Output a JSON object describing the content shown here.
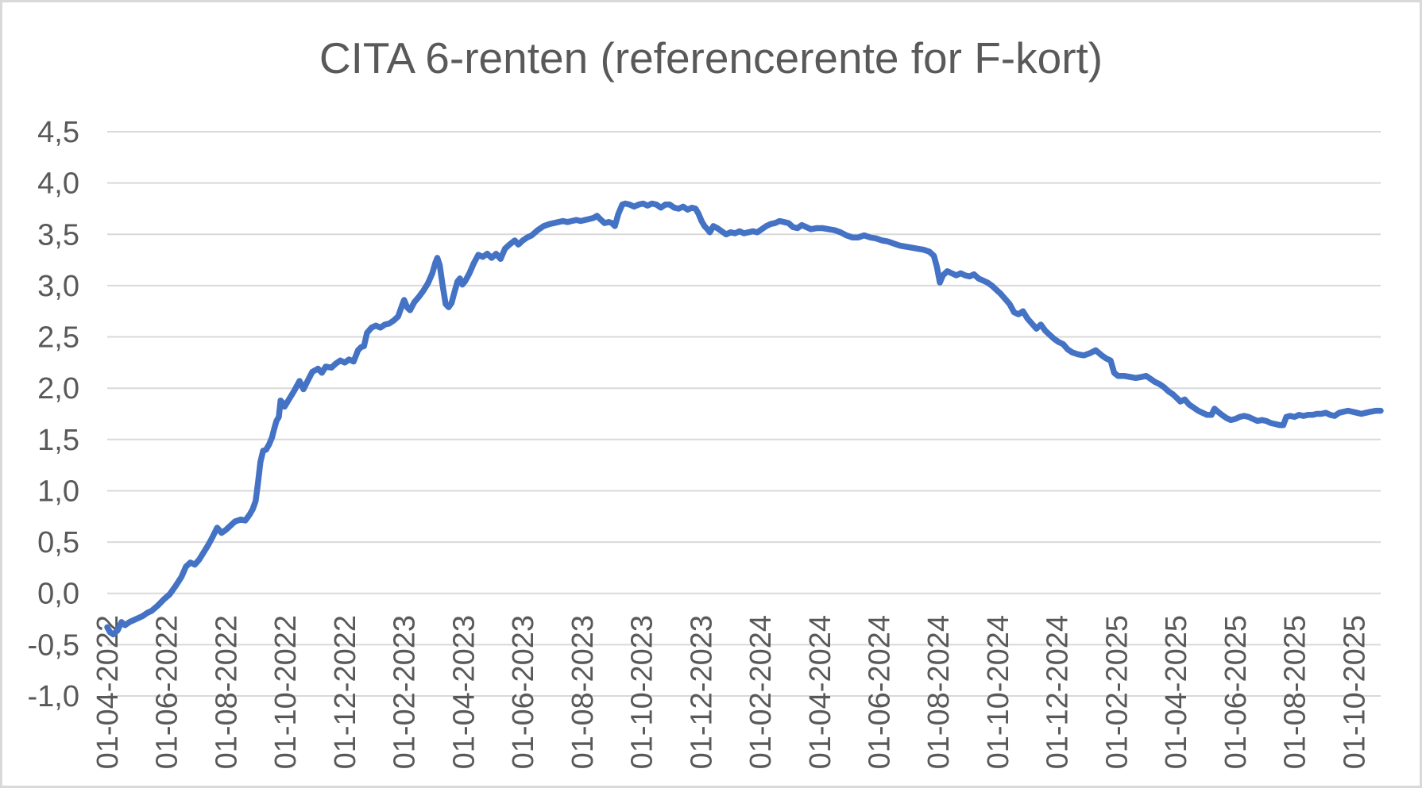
{
  "chart_data": {
    "type": "line",
    "title": "CITA 6-renten (referencerente for F-kort)",
    "xlabel": "",
    "ylabel": "",
    "grid": true,
    "legend_position": "none",
    "y_axis": {
      "range": [
        -1.0,
        4.5
      ],
      "tick_values": [
        4.5,
        4.0,
        3.5,
        3.0,
        2.5,
        2.0,
        1.5,
        1.0,
        0.5,
        0.0,
        -0.5,
        -1.0
      ],
      "tick_labels": [
        "4,5",
        "4,0",
        "3,5",
        "3,0",
        "2,5",
        "2,0",
        "1,5",
        "1,0",
        "0,5",
        "0,0",
        "-0,5",
        "-1,0"
      ]
    },
    "x_axis": {
      "unit": "months since 2022-04-01",
      "range": [
        0,
        42.9
      ],
      "tick_positions": [
        0,
        2,
        4,
        6,
        8,
        10,
        12,
        14,
        16,
        18,
        20,
        22,
        24,
        26,
        28,
        30,
        32,
        34,
        36,
        38,
        40,
        42
      ],
      "tick_labels": [
        "01-04-2022",
        "01-06-2022",
        "01-08-2022",
        "01-10-2022",
        "01-12-2022",
        "01-02-2023",
        "01-04-2023",
        "01-06-2023",
        "01-08-2023",
        "01-10-2023",
        "01-12-2023",
        "01-02-2024",
        "01-04-2024",
        "01-06-2024",
        "01-08-2024",
        "01-10-2024",
        "01-12-2024",
        "01-02-2025",
        "01-04-2025",
        "01-06-2025",
        "01-08-2025",
        "01-10-2025"
      ],
      "label_rotation_deg": -90
    },
    "colors": {
      "line": "#4472C4",
      "gridline": "#D9D9D9",
      "text": "#595959",
      "frame": "#D9D9D9",
      "background": "#FFFFFF"
    },
    "series": [
      {
        "name": "CITA 6-renten",
        "color": "#4472C4",
        "points": [
          [
            0.0,
            -0.33
          ],
          [
            0.1,
            -0.38
          ],
          [
            0.2,
            -0.4
          ],
          [
            0.35,
            -0.36
          ],
          [
            0.48,
            -0.28
          ],
          [
            0.6,
            -0.31
          ],
          [
            0.75,
            -0.28
          ],
          [
            0.9,
            -0.26
          ],
          [
            1.05,
            -0.24
          ],
          [
            1.2,
            -0.22
          ],
          [
            1.35,
            -0.19
          ],
          [
            1.5,
            -0.17
          ],
          [
            1.7,
            -0.12
          ],
          [
            1.9,
            -0.06
          ],
          [
            2.1,
            -0.01
          ],
          [
            2.3,
            0.07
          ],
          [
            2.5,
            0.16
          ],
          [
            2.65,
            0.26
          ],
          [
            2.8,
            0.3
          ],
          [
            2.95,
            0.28
          ],
          [
            3.1,
            0.33
          ],
          [
            3.25,
            0.4
          ],
          [
            3.4,
            0.47
          ],
          [
            3.55,
            0.55
          ],
          [
            3.7,
            0.64
          ],
          [
            3.85,
            0.59
          ],
          [
            4.0,
            0.62
          ],
          [
            4.15,
            0.66
          ],
          [
            4.3,
            0.7
          ],
          [
            4.5,
            0.72
          ],
          [
            4.65,
            0.71
          ],
          [
            4.8,
            0.77
          ],
          [
            4.9,
            0.82
          ],
          [
            5.0,
            0.9
          ],
          [
            5.08,
            1.08
          ],
          [
            5.16,
            1.28
          ],
          [
            5.25,
            1.39
          ],
          [
            5.35,
            1.4
          ],
          [
            5.45,
            1.45
          ],
          [
            5.55,
            1.52
          ],
          [
            5.62,
            1.6
          ],
          [
            5.7,
            1.68
          ],
          [
            5.78,
            1.72
          ],
          [
            5.84,
            1.88
          ],
          [
            5.9,
            1.86
          ],
          [
            5.97,
            1.82
          ],
          [
            6.1,
            1.88
          ],
          [
            6.29,
            1.97
          ],
          [
            6.48,
            2.07
          ],
          [
            6.61,
            1.99
          ],
          [
            6.75,
            2.07
          ],
          [
            6.91,
            2.16
          ],
          [
            7.1,
            2.19
          ],
          [
            7.23,
            2.15
          ],
          [
            7.36,
            2.21
          ],
          [
            7.55,
            2.2
          ],
          [
            7.7,
            2.24
          ],
          [
            7.85,
            2.27
          ],
          [
            8.0,
            2.25
          ],
          [
            8.15,
            2.28
          ],
          [
            8.3,
            2.26
          ],
          [
            8.45,
            2.37
          ],
          [
            8.55,
            2.4
          ],
          [
            8.65,
            2.41
          ],
          [
            8.75,
            2.54
          ],
          [
            8.9,
            2.59
          ],
          [
            9.05,
            2.61
          ],
          [
            9.2,
            2.59
          ],
          [
            9.35,
            2.62
          ],
          [
            9.5,
            2.63
          ],
          [
            9.65,
            2.66
          ],
          [
            9.8,
            2.7
          ],
          [
            9.92,
            2.8
          ],
          [
            10.0,
            2.86
          ],
          [
            10.1,
            2.79
          ],
          [
            10.2,
            2.76
          ],
          [
            10.35,
            2.84
          ],
          [
            10.5,
            2.89
          ],
          [
            10.65,
            2.95
          ],
          [
            10.8,
            3.02
          ],
          [
            10.95,
            3.12
          ],
          [
            11.05,
            3.22
          ],
          [
            11.12,
            3.27
          ],
          [
            11.2,
            3.2
          ],
          [
            11.3,
            3.0
          ],
          [
            11.4,
            2.82
          ],
          [
            11.5,
            2.79
          ],
          [
            11.6,
            2.83
          ],
          [
            11.7,
            2.94
          ],
          [
            11.8,
            3.04
          ],
          [
            11.88,
            3.07
          ],
          [
            11.96,
            3.01
          ],
          [
            12.05,
            3.04
          ],
          [
            12.2,
            3.12
          ],
          [
            12.35,
            3.22
          ],
          [
            12.5,
            3.3
          ],
          [
            12.65,
            3.28
          ],
          [
            12.8,
            3.31
          ],
          [
            12.95,
            3.27
          ],
          [
            13.1,
            3.31
          ],
          [
            13.25,
            3.26
          ],
          [
            13.4,
            3.36
          ],
          [
            13.55,
            3.4
          ],
          [
            13.73,
            3.44
          ],
          [
            13.85,
            3.4
          ],
          [
            14.0,
            3.44
          ],
          [
            14.15,
            3.47
          ],
          [
            14.3,
            3.49
          ],
          [
            14.5,
            3.54
          ],
          [
            14.7,
            3.58
          ],
          [
            14.9,
            3.6
          ],
          [
            15.05,
            3.61
          ],
          [
            15.2,
            3.62
          ],
          [
            15.35,
            3.63
          ],
          [
            15.5,
            3.62
          ],
          [
            15.65,
            3.63
          ],
          [
            15.8,
            3.64
          ],
          [
            15.95,
            3.63
          ],
          [
            16.1,
            3.64
          ],
          [
            16.25,
            3.65
          ],
          [
            16.38,
            3.66
          ],
          [
            16.5,
            3.68
          ],
          [
            16.6,
            3.65
          ],
          [
            16.75,
            3.61
          ],
          [
            16.9,
            3.62
          ],
          [
            17.0,
            3.61
          ],
          [
            17.1,
            3.58
          ],
          [
            17.22,
            3.7
          ],
          [
            17.35,
            3.79
          ],
          [
            17.45,
            3.8
          ],
          [
            17.6,
            3.79
          ],
          [
            17.75,
            3.77
          ],
          [
            17.9,
            3.79
          ],
          [
            18.05,
            3.8
          ],
          [
            18.2,
            3.78
          ],
          [
            18.35,
            3.8
          ],
          [
            18.5,
            3.79
          ],
          [
            18.65,
            3.76
          ],
          [
            18.8,
            3.79
          ],
          [
            18.95,
            3.79
          ],
          [
            19.1,
            3.76
          ],
          [
            19.25,
            3.75
          ],
          [
            19.4,
            3.77
          ],
          [
            19.55,
            3.74
          ],
          [
            19.7,
            3.76
          ],
          [
            19.82,
            3.75
          ],
          [
            19.92,
            3.7
          ],
          [
            20.02,
            3.63
          ],
          [
            20.12,
            3.58
          ],
          [
            20.22,
            3.55
          ],
          [
            20.3,
            3.52
          ],
          [
            20.42,
            3.58
          ],
          [
            20.55,
            3.56
          ],
          [
            20.7,
            3.53
          ],
          [
            20.85,
            3.5
          ],
          [
            21.0,
            3.52
          ],
          [
            21.15,
            3.51
          ],
          [
            21.3,
            3.53
          ],
          [
            21.45,
            3.51
          ],
          [
            21.6,
            3.52
          ],
          [
            21.75,
            3.53
          ],
          [
            21.9,
            3.52
          ],
          [
            22.05,
            3.55
          ],
          [
            22.2,
            3.58
          ],
          [
            22.35,
            3.6
          ],
          [
            22.5,
            3.61
          ],
          [
            22.65,
            3.63
          ],
          [
            22.8,
            3.62
          ],
          [
            22.95,
            3.61
          ],
          [
            23.1,
            3.57
          ],
          [
            23.25,
            3.56
          ],
          [
            23.4,
            3.59
          ],
          [
            23.55,
            3.57
          ],
          [
            23.7,
            3.55
          ],
          [
            23.9,
            3.56
          ],
          [
            24.1,
            3.56
          ],
          [
            24.3,
            3.55
          ],
          [
            24.5,
            3.54
          ],
          [
            24.7,
            3.52
          ],
          [
            24.9,
            3.49
          ],
          [
            25.1,
            3.47
          ],
          [
            25.3,
            3.47
          ],
          [
            25.5,
            3.49
          ],
          [
            25.7,
            3.47
          ],
          [
            25.9,
            3.46
          ],
          [
            26.1,
            3.44
          ],
          [
            26.3,
            3.43
          ],
          [
            26.5,
            3.41
          ],
          [
            26.7,
            3.39
          ],
          [
            26.9,
            3.38
          ],
          [
            27.1,
            3.37
          ],
          [
            27.3,
            3.36
          ],
          [
            27.5,
            3.35
          ],
          [
            27.7,
            3.33
          ],
          [
            27.85,
            3.29
          ],
          [
            27.95,
            3.18
          ],
          [
            28.05,
            3.03
          ],
          [
            28.15,
            3.1
          ],
          [
            28.3,
            3.14
          ],
          [
            28.45,
            3.12
          ],
          [
            28.6,
            3.1
          ],
          [
            28.75,
            3.12
          ],
          [
            28.9,
            3.1
          ],
          [
            29.05,
            3.09
          ],
          [
            29.2,
            3.11
          ],
          [
            29.35,
            3.07
          ],
          [
            29.5,
            3.05
          ],
          [
            29.65,
            3.03
          ],
          [
            29.8,
            3.0
          ],
          [
            29.95,
            2.96
          ],
          [
            30.1,
            2.92
          ],
          [
            30.25,
            2.87
          ],
          [
            30.4,
            2.82
          ],
          [
            30.55,
            2.74
          ],
          [
            30.7,
            2.72
          ],
          [
            30.85,
            2.75
          ],
          [
            31.0,
            2.68
          ],
          [
            31.15,
            2.63
          ],
          [
            31.3,
            2.58
          ],
          [
            31.45,
            2.62
          ],
          [
            31.6,
            2.56
          ],
          [
            31.75,
            2.52
          ],
          [
            31.9,
            2.48
          ],
          [
            32.05,
            2.45
          ],
          [
            32.2,
            2.43
          ],
          [
            32.35,
            2.38
          ],
          [
            32.5,
            2.35
          ],
          [
            32.7,
            2.33
          ],
          [
            32.9,
            2.32
          ],
          [
            33.1,
            2.34
          ],
          [
            33.3,
            2.37
          ],
          [
            33.5,
            2.32
          ],
          [
            33.65,
            2.29
          ],
          [
            33.8,
            2.27
          ],
          [
            33.92,
            2.15
          ],
          [
            34.05,
            2.12
          ],
          [
            34.25,
            2.12
          ],
          [
            34.45,
            2.11
          ],
          [
            34.65,
            2.1
          ],
          [
            34.85,
            2.11
          ],
          [
            35.0,
            2.12
          ],
          [
            35.15,
            2.09
          ],
          [
            35.3,
            2.06
          ],
          [
            35.45,
            2.04
          ],
          [
            35.6,
            2.01
          ],
          [
            35.75,
            1.97
          ],
          [
            35.9,
            1.94
          ],
          [
            36.05,
            1.9
          ],
          [
            36.15,
            1.87
          ],
          [
            36.3,
            1.89
          ],
          [
            36.45,
            1.84
          ],
          [
            36.6,
            1.81
          ],
          [
            36.75,
            1.78
          ],
          [
            36.9,
            1.76
          ],
          [
            37.05,
            1.74
          ],
          [
            37.2,
            1.74
          ],
          [
            37.3,
            1.8
          ],
          [
            37.42,
            1.77
          ],
          [
            37.55,
            1.74
          ],
          [
            37.7,
            1.71
          ],
          [
            37.85,
            1.69
          ],
          [
            38.0,
            1.7
          ],
          [
            38.15,
            1.72
          ],
          [
            38.3,
            1.73
          ],
          [
            38.45,
            1.72
          ],
          [
            38.6,
            1.7
          ],
          [
            38.75,
            1.68
          ],
          [
            38.9,
            1.69
          ],
          [
            39.05,
            1.68
          ],
          [
            39.2,
            1.66
          ],
          [
            39.35,
            1.65
          ],
          [
            39.5,
            1.64
          ],
          [
            39.62,
            1.64
          ],
          [
            39.72,
            1.72
          ],
          [
            39.85,
            1.73
          ],
          [
            40.0,
            1.72
          ],
          [
            40.15,
            1.74
          ],
          [
            40.3,
            1.73
          ],
          [
            40.45,
            1.74
          ],
          [
            40.6,
            1.74
          ],
          [
            40.75,
            1.75
          ],
          [
            40.9,
            1.75
          ],
          [
            41.05,
            1.76
          ],
          [
            41.2,
            1.74
          ],
          [
            41.35,
            1.73
          ],
          [
            41.5,
            1.76
          ],
          [
            41.65,
            1.77
          ],
          [
            41.8,
            1.78
          ],
          [
            41.95,
            1.77
          ],
          [
            42.1,
            1.76
          ],
          [
            42.25,
            1.75
          ],
          [
            42.4,
            1.76
          ],
          [
            42.55,
            1.77
          ],
          [
            42.75,
            1.78
          ],
          [
            42.9,
            1.78
          ]
        ]
      }
    ]
  }
}
